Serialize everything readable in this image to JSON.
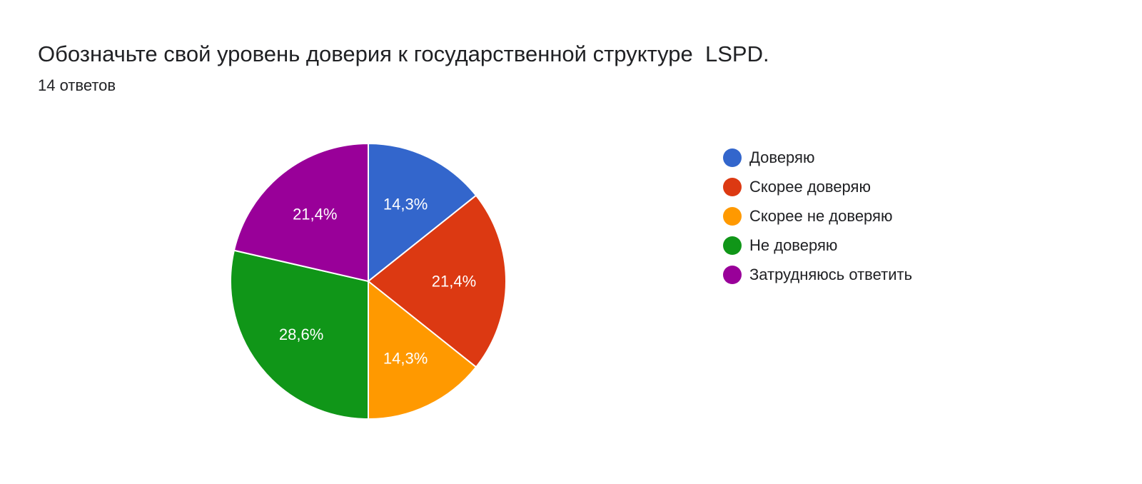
{
  "header": {
    "title": "Обозначьте свой уровень доверия к государственной структуре  LSPD.",
    "responses": "14 ответов"
  },
  "chart_data": {
    "type": "pie",
    "title": "Обозначьте свой уровень доверия к государственной структуре  LSPD.",
    "total_responses": 14,
    "start_angle_deg": 90,
    "direction": "clockwise",
    "legend_position": "right",
    "slices": [
      {
        "label": "Доверяю",
        "percent": 14.3,
        "display": "14,3%",
        "color": "#3366cc"
      },
      {
        "label": "Скорее доверяю",
        "percent": 21.4,
        "display": "21,4%",
        "color": "#dc3912"
      },
      {
        "label": "Скорее не доверяю",
        "percent": 14.3,
        "display": "14,3%",
        "color": "#ff9900"
      },
      {
        "label": "Не доверяю",
        "percent": 28.6,
        "display": "28,6%",
        "color": "#109618"
      },
      {
        "label": "Затрудняюсь ответить",
        "percent": 21.4,
        "display": "21,4%",
        "color": "#990099"
      }
    ]
  }
}
